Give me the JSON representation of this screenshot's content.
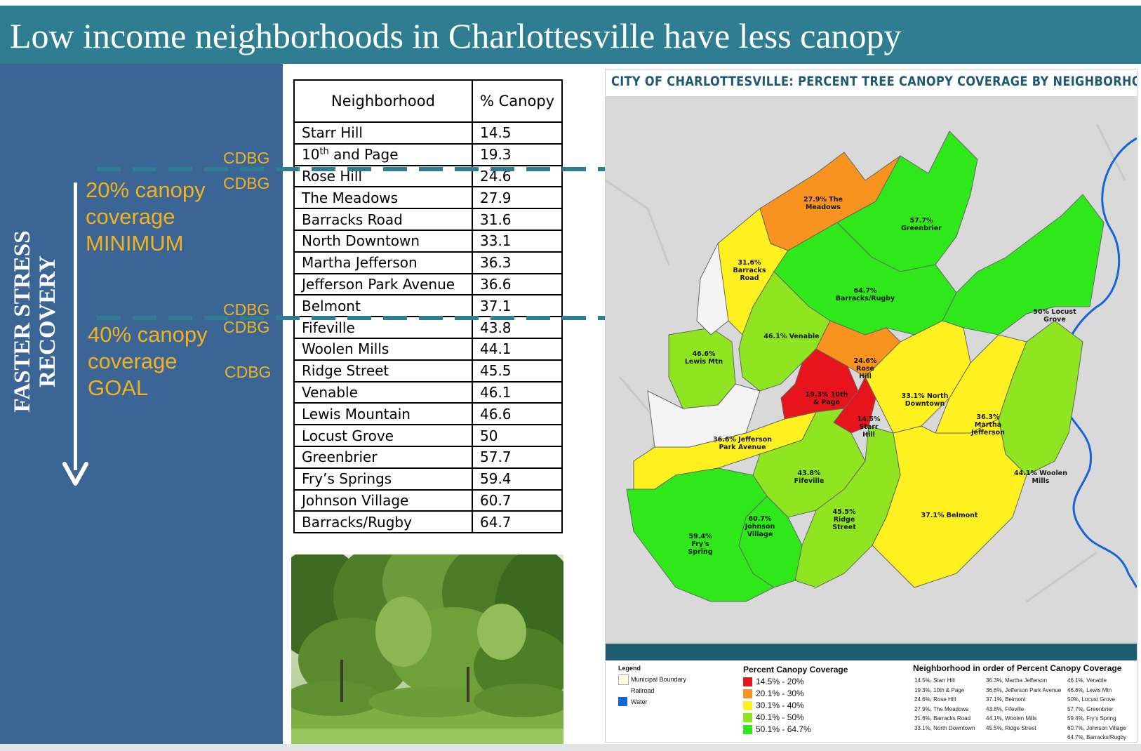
{
  "slide": {
    "title": "Low income neighborhoods in Charlottesville have less canopy"
  },
  "left_panel": {
    "vertical_label_line1": "FASTER STRESS",
    "vertical_label_line2": "RECOVERY",
    "minimum_line1": "20% canopy",
    "minimum_line2": "coverage",
    "minimum_line3": "MINIMUM",
    "goal_line1": "40% canopy",
    "goal_line2": "coverage",
    "goal_line3": "GOAL",
    "cdbg_labels": [
      "CDBG",
      "CDBG",
      "CDBG",
      "CDBG",
      "CDBG"
    ]
  },
  "table": {
    "headers": [
      "Neighborhood",
      "% Canopy"
    ],
    "rows": [
      {
        "name": "Starr Hill",
        "canopy": "14.5"
      },
      {
        "name": "10th and Page",
        "name_base": "10",
        "name_sup": "th",
        "name_rest": " and Page",
        "canopy": "19.3"
      },
      {
        "name": "Rose Hill",
        "canopy": "24.6"
      },
      {
        "name": "The Meadows",
        "canopy": "27.9"
      },
      {
        "name": "Barracks Road",
        "canopy": "31.6"
      },
      {
        "name": "North Downtown",
        "canopy": "33.1"
      },
      {
        "name": "Martha Jefferson",
        "canopy": "36.3"
      },
      {
        "name": "Jefferson Park Avenue",
        "canopy": "36.6"
      },
      {
        "name": "Belmont",
        "canopy": "37.1"
      },
      {
        "name": "Fifeville",
        "canopy": "43.8"
      },
      {
        "name": "Woolen Mills",
        "canopy": "44.1"
      },
      {
        "name": "Ridge Street",
        "canopy": "45.5"
      },
      {
        "name": "Venable",
        "canopy": "46.1"
      },
      {
        "name": "Lewis Mountain",
        "canopy": "46.6"
      },
      {
        "name": "Locust Grove",
        "canopy": "50"
      },
      {
        "name": "Greenbrier",
        "canopy": "57.7"
      },
      {
        "name": "Fry’s Springs",
        "canopy": "59.4"
      },
      {
        "name": "Johnson Village",
        "canopy": "60.7"
      },
      {
        "name": "Barracks/Rugby",
        "canopy": "64.7"
      }
    ]
  },
  "map": {
    "title": "CITY OF CHARLOTTESVILLE: PERCENT TREE CANOPY COVERAGE BY NEIGHBORHOOD",
    "labels": {
      "meadows": [
        "27.9% The",
        "Meadows"
      ],
      "greenbrier": [
        "57.7%",
        "Greenbrier"
      ],
      "barracks_road": [
        "31.6%",
        "Barracks",
        "Road"
      ],
      "barracks_rugby": [
        "64.7%",
        "Barracks/Rugby"
      ],
      "locust_grove": [
        "50% Locust",
        "Grove"
      ],
      "venable": [
        "46.1% Venable"
      ],
      "lewis_mtn": [
        "46.6%",
        "Lewis Mtn"
      ],
      "rose_hill": [
        "24.6%",
        "Rose",
        "Hill"
      ],
      "tenth_page": [
        "19.3% 10th",
        "& Page"
      ],
      "starr_hill": [
        "14.5%",
        "Starr",
        "Hill"
      ],
      "north_downtown": [
        "33.1% North",
        "Downtown"
      ],
      "martha_jefferson": [
        "36.3%",
        "Martha",
        "Jefferson"
      ],
      "jpa": [
        "36.6% Jefferson",
        "Park Avenue"
      ],
      "fifeville": [
        "43.8%",
        "Fifeville"
      ],
      "woolen_mills": [
        "44.1% Woolen",
        "Mills"
      ],
      "johnson_village": [
        "60.7%",
        "Johnson",
        "Village"
      ],
      "ridge_street": [
        "45.5%",
        "Ridge",
        "Street"
      ],
      "belmont": [
        "37.1% Belmont"
      ],
      "frys_spring": [
        "59.4%",
        "Fry's",
        "Spring"
      ]
    },
    "colors": {
      "red": "#e8141b",
      "orange": "#f7931e",
      "yellow": "#fff01f",
      "lightgreen": "#8fe51f",
      "green": "#2ee81a",
      "water": "#1565d8"
    },
    "legend": {
      "title": "Legend",
      "items": [
        "Municipal Boundary",
        "Railroad",
        "Water"
      ]
    },
    "coverage_legend": {
      "title": "Percent Canopy Coverage",
      "items": [
        {
          "label": "14.5% - 20%",
          "color": "#e8141b"
        },
        {
          "label": "20.1% - 30%",
          "color": "#f7931e"
        },
        {
          "label": "30.1% - 40%",
          "color": "#fff01f"
        },
        {
          "label": "40.1% - 50%",
          "color": "#8fe51f"
        },
        {
          "label": "50.1% - 64.7%",
          "color": "#2ee81a"
        }
      ]
    },
    "order_list": {
      "title": "Neighborhood in order of Percent Canopy Coverage",
      "col1": [
        "14.5%, Starr Hill",
        "19.3%, 10th & Page",
        "24.6%, Rose Hill",
        "27.9%, The Meadows",
        "31.6%, Barracks Road",
        "33.1%, North Downtown"
      ],
      "col2": [
        "36.3%, Martha Jefferson",
        "36.6%, Jefferson Park Avenue",
        "37.1%, Belmont",
        "43.8%, Fifeville",
        "44.1%, Woolen Mills",
        "45.5%, Ridge Street"
      ],
      "col3": [
        "46.1%, Venable",
        "46.6%, Lewis Mtn",
        "50%, Locust Grove",
        "57.7%, Greenbrier",
        "59.4%, Fry's Spring",
        "60.7%, Johnson Village",
        "64.7%, Barracks/Rugby"
      ]
    }
  }
}
